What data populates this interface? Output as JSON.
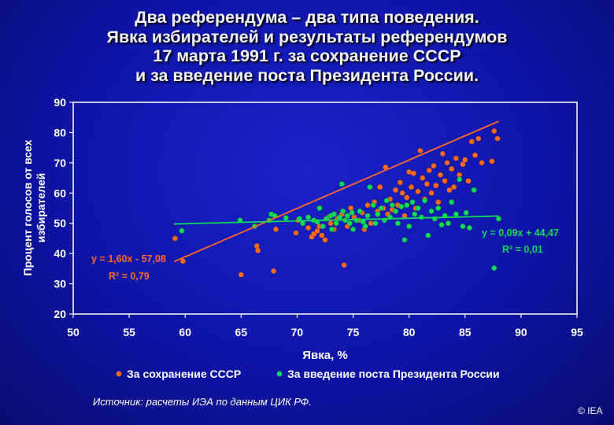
{
  "title_lines": [
    "Два референдума – два типа поведения.",
    "Явка избирателей и результаты референдумов",
    "17 марта 1991 г. за сохранение СССР",
    "и за введение поста Президента России."
  ],
  "source_note": "Источник:  расчеты ИЭА по данным ЦИК РФ.",
  "copyright": "© IEA",
  "colors": {
    "ussr": "#ff6a22",
    "president": "#11d85a",
    "axis_text": "#ffffff",
    "plot_border": "#f0f0f0"
  },
  "chart_data": {
    "type": "scatter",
    "xlabel": "Явка, %",
    "ylabel_lines": [
      "Процент голосов от всех",
      "избирателей"
    ],
    "xlim": [
      50,
      95
    ],
    "ylim": [
      20,
      90
    ],
    "x_ticks": [
      50,
      55,
      60,
      65,
      70,
      75,
      80,
      85,
      90,
      95
    ],
    "y_ticks": [
      20,
      30,
      40,
      50,
      60,
      70,
      80,
      90
    ],
    "grid": false,
    "legend_position": "bottom",
    "series": [
      {
        "name": "За сохранение СССР",
        "color": "#ff6a22",
        "trendline": {
          "slope": 1.6,
          "intercept": -57.08,
          "x_range": [
            59,
            88
          ]
        },
        "equation": "y = 1,60x - 57,08",
        "r2": "R² = 0,79",
        "points": [
          [
            59.1,
            45
          ],
          [
            59.8,
            37.5
          ],
          [
            65,
            33
          ],
          [
            66.4,
            42.5
          ],
          [
            66.5,
            41
          ],
          [
            67.9,
            34.2
          ],
          [
            68.1,
            48
          ],
          [
            69.9,
            46.8
          ],
          [
            70.1,
            51
          ],
          [
            71,
            48.5
          ],
          [
            71.3,
            45.5
          ],
          [
            71.5,
            46.5
          ],
          [
            71.8,
            47.5
          ],
          [
            72,
            49
          ],
          [
            72.2,
            46
          ],
          [
            72.5,
            44.5
          ],
          [
            72.8,
            52
          ],
          [
            73,
            50
          ],
          [
            73.3,
            48
          ],
          [
            73.6,
            51.5
          ],
          [
            74,
            53
          ],
          [
            74.2,
            36.2
          ],
          [
            74.5,
            49
          ],
          [
            74.8,
            55
          ],
          [
            75.1,
            52
          ],
          [
            75.5,
            51
          ],
          [
            75.8,
            53.5
          ],
          [
            76,
            48
          ],
          [
            76.3,
            56
          ],
          [
            76.6,
            50
          ],
          [
            76.9,
            57
          ],
          [
            77.2,
            54
          ],
          [
            77.4,
            62
          ],
          [
            77.7,
            55
          ],
          [
            77.9,
            68.5
          ],
          [
            78.1,
            53
          ],
          [
            78.3,
            58
          ],
          [
            78.5,
            54.5
          ],
          [
            78.8,
            61
          ],
          [
            79,
            56
          ],
          [
            79.2,
            63.5
          ],
          [
            79.4,
            60
          ],
          [
            79.6,
            52.5
          ],
          [
            79.8,
            58.5
          ],
          [
            80,
            67
          ],
          [
            80.2,
            62
          ],
          [
            80.4,
            66.5
          ],
          [
            80.6,
            55
          ],
          [
            80.8,
            60.5
          ],
          [
            81,
            74
          ],
          [
            81.2,
            65
          ],
          [
            81.4,
            58
          ],
          [
            81.6,
            63
          ],
          [
            81.8,
            67.5
          ],
          [
            82,
            60
          ],
          [
            82.2,
            69
          ],
          [
            82.4,
            62.5
          ],
          [
            82.6,
            57
          ],
          [
            82.8,
            66
          ],
          [
            83,
            73
          ],
          [
            83.2,
            64
          ],
          [
            83.4,
            70
          ],
          [
            83.6,
            61
          ],
          [
            83.8,
            68
          ],
          [
            84,
            62
          ],
          [
            84.2,
            71.5
          ],
          [
            84.5,
            66
          ],
          [
            84.8,
            69.5
          ],
          [
            85,
            71
          ],
          [
            85.3,
            64
          ],
          [
            85.6,
            77
          ],
          [
            85.9,
            72.5
          ],
          [
            86.2,
            78
          ],
          [
            86.5,
            70
          ],
          [
            87.4,
            70.5
          ],
          [
            87.6,
            80.5
          ],
          [
            87.9,
            78
          ]
        ]
      },
      {
        "name": "За введение поста Президента России",
        "color": "#11d85a",
        "trendline": {
          "slope": 0.09,
          "intercept": 44.47,
          "x_range": [
            59,
            88
          ]
        },
        "equation": "y = 0,09x + 44,47",
        "r2": "R² = 0,01",
        "points": [
          [
            59.7,
            47.5
          ],
          [
            64.9,
            51
          ],
          [
            66.2,
            49
          ],
          [
            67.5,
            51
          ],
          [
            67.7,
            53
          ],
          [
            68,
            52.5
          ],
          [
            69,
            51.8
          ],
          [
            70.2,
            51.5
          ],
          [
            70.5,
            50
          ],
          [
            71,
            52
          ],
          [
            71.5,
            51
          ],
          [
            71.8,
            50.5
          ],
          [
            72,
            55
          ],
          [
            72.3,
            49
          ],
          [
            72.6,
            51.5
          ],
          [
            73,
            52.5
          ],
          [
            73.1,
            48
          ],
          [
            73.3,
            53
          ],
          [
            73.5,
            50
          ],
          [
            73.8,
            52
          ],
          [
            74,
            63
          ],
          [
            74.1,
            54
          ],
          [
            74.3,
            51
          ],
          [
            74.5,
            52.5
          ],
          [
            74.7,
            50
          ],
          [
            74.9,
            53.5
          ],
          [
            75,
            48
          ],
          [
            75.3,
            51
          ],
          [
            75.6,
            54
          ],
          [
            75.9,
            50.5
          ],
          [
            76.1,
            49
          ],
          [
            76.3,
            52.5
          ],
          [
            76.5,
            62
          ],
          [
            76.8,
            56
          ],
          [
            77,
            50
          ],
          [
            77.2,
            53
          ],
          [
            77.5,
            55
          ],
          [
            77.8,
            51
          ],
          [
            78,
            57.5
          ],
          [
            78.3,
            52
          ],
          [
            78.5,
            56
          ],
          [
            78.8,
            54
          ],
          [
            79,
            50
          ],
          [
            79.3,
            55.5
          ],
          [
            79.6,
            44.5
          ],
          [
            79.8,
            56
          ],
          [
            80,
            49
          ],
          [
            80.3,
            57
          ],
          [
            80.5,
            53
          ],
          [
            80.8,
            55
          ],
          [
            81.1,
            52
          ],
          [
            81.4,
            57.5
          ],
          [
            81.7,
            46
          ],
          [
            82,
            54
          ],
          [
            82.3,
            51.5
          ],
          [
            82.6,
            55
          ],
          [
            82.9,
            49.5
          ],
          [
            83.2,
            52.5
          ],
          [
            83.5,
            50
          ],
          [
            83.8,
            57
          ],
          [
            84.2,
            53
          ],
          [
            84.5,
            64.5
          ],
          [
            84.8,
            49
          ],
          [
            85.1,
            53.5
          ],
          [
            85.4,
            48.5
          ],
          [
            85.8,
            61
          ],
          [
            87.6,
            35.2
          ],
          [
            88,
            51.5
          ]
        ]
      }
    ]
  }
}
